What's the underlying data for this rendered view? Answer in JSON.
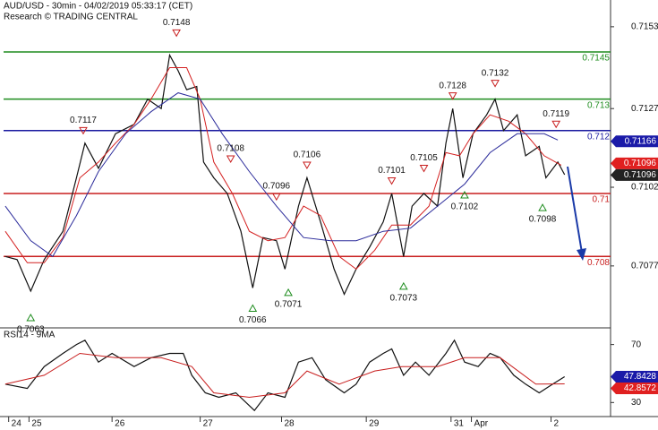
{
  "chart_data": [
    {
      "type": "line",
      "title": "AUD/USD - 30min - 04/02/2019 05:33:17 (CET)",
      "subtitle": "Research © TRADING CENTRAL",
      "xlim": [
        0,
        356
      ],
      "ylim": [
        0.70576,
        0.71615
      ],
      "yticks": [
        0.7153,
        0.7127,
        0.7102,
        0.7077
      ],
      "series": [
        {
          "color": "#111111",
          "x": [
            1,
            8,
            16,
            24,
            35,
            43,
            48,
            56,
            66,
            77,
            85,
            93,
            98,
            103,
            108,
            114,
            118,
            124,
            132,
            140,
            147,
            153,
            161,
            166,
            174,
            179,
            187,
            195,
            201,
            208,
            216,
            224,
            229,
            236,
            241,
            248,
            256,
            261,
            265,
            271,
            277,
            285,
            290,
            295,
            303,
            308,
            316,
            320,
            327,
            331
          ],
          "values": [
            0.708,
            0.7079,
            0.7069,
            0.7079,
            0.7088,
            0.7105,
            0.7116,
            0.7108,
            0.7119,
            0.7122,
            0.713,
            0.7127,
            0.7144,
            0.7139,
            0.7133,
            0.7134,
            0.711,
            0.7105,
            0.71,
            0.7088,
            0.707,
            0.7086,
            0.7085,
            0.7076,
            0.7096,
            0.7105,
            0.7091,
            0.7076,
            0.7068,
            0.7076,
            0.7083,
            0.7091,
            0.71,
            0.708,
            0.7096,
            0.71,
            0.7096,
            0.7116,
            0.7127,
            0.7105,
            0.7119,
            0.7125,
            0.713,
            0.712,
            0.7125,
            0.7112,
            0.7115,
            0.7105,
            0.711,
            0.7106
          ]
        },
        {
          "color": "#d42020",
          "x": [
            1,
            14,
            24,
            35,
            45,
            56,
            66,
            77,
            87,
            98,
            108,
            116,
            124,
            135,
            145,
            156,
            166,
            177,
            187,
            198,
            208,
            219,
            229,
            240,
            251,
            261,
            269,
            277,
            287,
            298,
            308,
            319,
            329
          ],
          "values": [
            0.7088,
            0.7078,
            0.7078,
            0.7086,
            0.7105,
            0.711,
            0.7116,
            0.7122,
            0.713,
            0.714,
            0.714,
            0.713,
            0.711,
            0.71,
            0.7088,
            0.7085,
            0.7086,
            0.7096,
            0.7093,
            0.708,
            0.7076,
            0.7082,
            0.709,
            0.709,
            0.7096,
            0.7113,
            0.7112,
            0.7119,
            0.7125,
            0.7123,
            0.7119,
            0.7112,
            0.7109
          ]
        },
        {
          "color": "#2a2a9a",
          "x": [
            1,
            16,
            29,
            43,
            56,
            72,
            87,
            103,
            116,
            129,
            145,
            161,
            177,
            193,
            208,
            224,
            240,
            256,
            272,
            287,
            303,
            319,
            327
          ],
          "values": [
            0.7096,
            0.7085,
            0.708,
            0.7093,
            0.7107,
            0.7119,
            0.7126,
            0.7132,
            0.713,
            0.7119,
            0.7107,
            0.7096,
            0.7086,
            0.7085,
            0.7085,
            0.7088,
            0.7089,
            0.7096,
            0.7103,
            0.7113,
            0.7119,
            0.7119,
            0.7117
          ]
        }
      ],
      "levels": [
        {
          "value": 0.7145,
          "color": "#1e8c1e"
        },
        {
          "value": 0.713,
          "color": "#1e8c1e"
        },
        {
          "value": 0.712,
          "color": "#1a1aa0"
        },
        {
          "value": 0.71,
          "color": "#c81e1e"
        },
        {
          "value": 0.708,
          "color": "#c81e1e"
        }
      ],
      "highs": {
        "x": [
          102,
          47,
          134,
          161,
          179,
          229,
          248,
          265,
          290,
          326
        ],
        "values": [
          0.7148,
          0.7117,
          0.7108,
          0.7096,
          0.7106,
          0.7101,
          0.7105,
          0.7128,
          0.7132,
          0.7119
        ]
      },
      "lows": {
        "x": [
          16,
          147,
          168,
          236,
          272,
          318
        ],
        "values": [
          0.7063,
          0.7066,
          0.7071,
          0.7073,
          0.7102,
          0.7098
        ]
      },
      "badges": [
        {
          "value": 0.71166,
          "color": "#1a1aa8"
        },
        {
          "value": 0.71096,
          "color": "#e02020"
        },
        {
          "value": 0.71096,
          "color": "#222222"
        }
      ]
    },
    {
      "type": "line",
      "title": "RSI14 - 9MA",
      "xlim": [
        0,
        356
      ],
      "ylim": [
        20.3,
        80.9
      ],
      "yticks": [
        70,
        30
      ],
      "xticks": [
        {
          "value": 3,
          "label": "24"
        },
        {
          "value": 15,
          "label": "25"
        },
        {
          "value": 64,
          "label": "26"
        },
        {
          "value": 116,
          "label": "27"
        },
        {
          "value": 164,
          "label": "28"
        },
        {
          "value": 214,
          "label": "29"
        },
        {
          "value": 264,
          "label": "31"
        },
        {
          "value": 276,
          "label": "Apr"
        },
        {
          "value": 323,
          "label": "2"
        }
      ],
      "series": [
        {
          "color": "#111111",
          "x": [
            1,
            14,
            24,
            35,
            43,
            48,
            56,
            64,
            77,
            87,
            98,
            106,
            111,
            119,
            127,
            137,
            148,
            156,
            166,
            174,
            182,
            190,
            201,
            208,
            216,
            224,
            229,
            236,
            243,
            251,
            261,
            266,
            272,
            280,
            287,
            293,
            301,
            308,
            316,
            324,
            331
          ],
          "values": [
            42.7,
            39.7,
            54.8,
            63.9,
            70,
            73,
            57.9,
            63.9,
            54.8,
            60.9,
            63.9,
            63.9,
            48.8,
            36.7,
            33.6,
            36.7,
            24.5,
            36.7,
            33.6,
            57.9,
            60.9,
            45.8,
            36.7,
            42.7,
            57.9,
            63.9,
            67,
            48.8,
            57.9,
            48.8,
            63.9,
            73,
            57.9,
            54.8,
            63.9,
            60.9,
            48.8,
            42.7,
            36.7,
            42.7,
            47.8
          ]
        },
        {
          "color": "#c81e1e",
          "x": [
            1,
            24,
            45,
            66,
            93,
            111,
            124,
            145,
            166,
            179,
            198,
            219,
            235,
            256,
            272,
            293,
            314,
            331
          ],
          "values": [
            42.7,
            48.8,
            63.9,
            60.9,
            60.9,
            54.8,
            36.7,
            33.6,
            36.7,
            51.8,
            42.7,
            51.8,
            54.8,
            54.8,
            60.9,
            60.9,
            42.7,
            42.9
          ]
        }
      ],
      "badges": [
        {
          "value": 47.8428,
          "color": "#1a1aa8"
        },
        {
          "value": 42.8572,
          "color": "#e02020"
        }
      ]
    }
  ]
}
